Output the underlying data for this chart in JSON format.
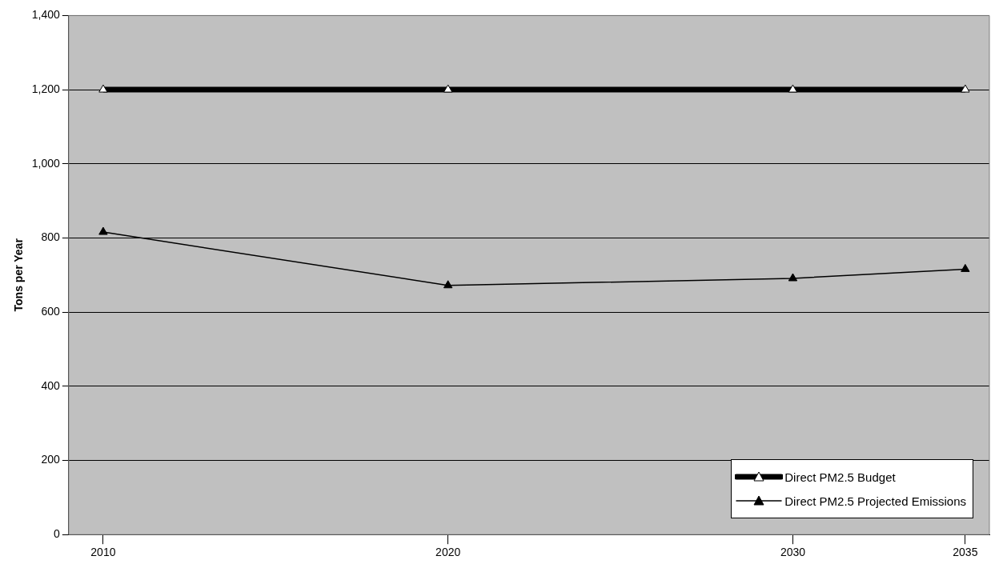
{
  "chart_data": {
    "type": "line",
    "ylabel": "Tons per Year",
    "x": [
      2010,
      2020,
      2030,
      2035
    ],
    "series": [
      {
        "name": "Direct PM2.5 Budget",
        "color": "#000000",
        "values": [
          1200,
          1200,
          1200,
          1200
        ]
      },
      {
        "name": "Direct PM2.5 Projected Emissions",
        "color": "#000000",
        "values": [
          816,
          672,
          691,
          716
        ]
      }
    ],
    "xlim": [
      2009,
      2035.7
    ],
    "xticks": [
      2010,
      2020,
      2030,
      2035
    ],
    "ylim": [
      0,
      1400
    ],
    "yticks": [
      0,
      200,
      400,
      600,
      800,
      {
        "value": 1000,
        "label": "1,000"
      },
      {
        "value": 1200,
        "label": "1,200"
      },
      {
        "value": 1400,
        "label": "1,400"
      }
    ],
    "grid": "y",
    "legend": "bottom right",
    "marker": "triangle",
    "line_style": "solid"
  }
}
